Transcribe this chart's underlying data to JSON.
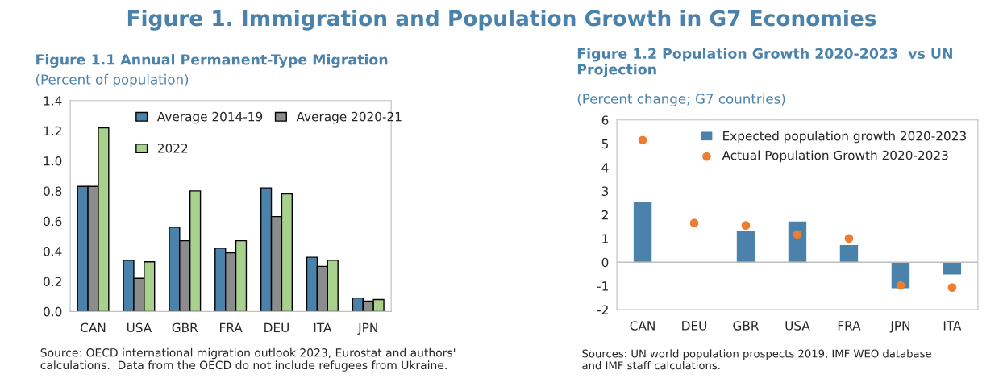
{
  "chart_data": [
    {
      "type": "bar",
      "title": "Figure 1.1 Annual Permanent-Type Migration",
      "subtitle": "(Percent of population)",
      "categories": [
        "CAN",
        "USA",
        "GBR",
        "FRA",
        "DEU",
        "ITA",
        "JPN"
      ],
      "series": [
        {
          "name": "Average 2014-19",
          "color": "#4a82ab",
          "values": [
            0.83,
            0.34,
            0.56,
            0.42,
            0.82,
            0.36,
            0.09
          ]
        },
        {
          "name": "Average 2020-21",
          "color": "#8c8c8c",
          "values": [
            0.83,
            0.22,
            0.47,
            0.39,
            0.63,
            0.3,
            0.07
          ]
        },
        {
          "name": "2022",
          "color": "#a9d18e",
          "values": [
            1.22,
            0.33,
            0.8,
            0.47,
            0.78,
            0.34,
            0.08
          ]
        }
      ],
      "ylim": [
        0,
        1.4
      ],
      "yticks": [
        {
          "value": 0,
          "label": "0.0"
        },
        0.2,
        0.4,
        0.6,
        0.8,
        {
          "value": 1,
          "label": "1.0"
        },
        1.2,
        1.4
      ],
      "legend": "top",
      "grid": false,
      "annotations": [
        "Figure 1. Immigration and Population Growth in G7 Economies",
        "Source: OECD international migration outlook 2023, Eurostat and authors' calculations.  Data from the OECD do not include refugees from Ukraine."
      ]
    },
    {
      "type": "bar",
      "title": "Figure 1.2 Population Growth 2020-2023  vs UN Projection",
      "subtitle": "(Percent change; G7 countries)",
      "categories": [
        "CAN",
        "DEU",
        "GBR",
        "USA",
        "FRA",
        "JPN",
        "ITA"
      ],
      "series": [
        {
          "name": "Expected population growth 2020-2023",
          "color": "#4a82ab",
          "values": [
            2.55,
            null,
            1.3,
            1.72,
            0.72,
            -1.1,
            -0.52
          ]
        },
        {
          "name": "Actual Population Growth 2020-2023",
          "type": "scatter",
          "marker": "circle",
          "color": "#ed7d31",
          "values": [
            5.15,
            1.65,
            1.55,
            1.17,
            1.0,
            -0.98,
            -1.07
          ]
        }
      ],
      "ref_lines": [
        {
          "axis": "y",
          "value": 0,
          "color": "#bfbfbf"
        }
      ],
      "ylim": [
        -2,
        6
      ],
      "yticks": [
        -2,
        -1,
        0,
        1,
        2,
        3,
        4,
        5,
        6
      ],
      "legend": "top right",
      "grid": false,
      "annotations": [
        "Sources: UN world population prospects 2019, IMF WEO database and IMF staff calculations."
      ]
    }
  ]
}
